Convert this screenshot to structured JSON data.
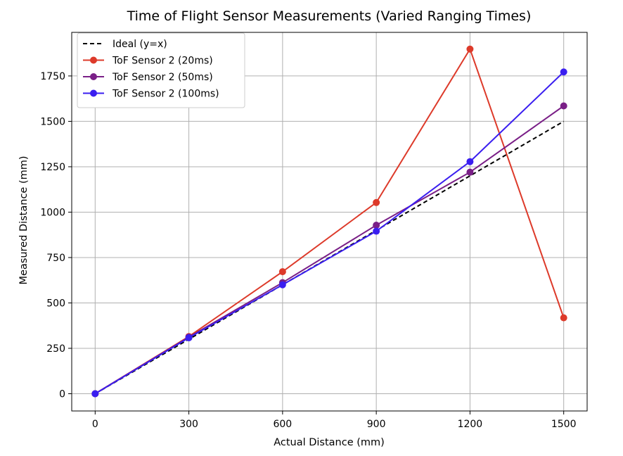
{
  "chart_data": {
    "type": "line",
    "title": "Time of Flight Sensor Measurements (Varied Ranging Times)",
    "xlabel": "Actual Distance (mm)",
    "ylabel": "Measured Distance (mm)",
    "xlim": [
      -75,
      1575
    ],
    "ylim": [
      -95,
      1990
    ],
    "x_ticks": [
      0,
      300,
      600,
      900,
      1200,
      1500
    ],
    "x_tick_labels": [
      "0",
      "300",
      "600",
      "900",
      "1200",
      "1500"
    ],
    "y_ticks": [
      0,
      250,
      500,
      750,
      1000,
      1250,
      1500,
      1750
    ],
    "y_tick_labels": [
      "0",
      "250",
      "500",
      "750",
      "1000",
      "1250",
      "1500",
      "1750"
    ],
    "grid": true,
    "legend_position": "top-left",
    "x": [
      0,
      300,
      600,
      900,
      1200,
      1500
    ],
    "series": [
      {
        "name": "Ideal (y=x)",
        "values": [
          0,
          300,
          600,
          900,
          1200,
          1500
        ],
        "color": "#000000",
        "style": "dashed",
        "marker": "none"
      },
      {
        "name": "ToF Sensor 2 (20ms)",
        "values": [
          0,
          315,
          672,
          1053,
          1898,
          418
        ],
        "color": "#dd3a2a",
        "style": "solid",
        "marker": "circle"
      },
      {
        "name": "ToF Sensor 2 (50ms)",
        "values": [
          0,
          312,
          612,
          928,
          1220,
          1585
        ],
        "color": "#7a1f87",
        "style": "solid",
        "marker": "circle"
      },
      {
        "name": "ToF Sensor 2 (100ms)",
        "values": [
          0,
          308,
          600,
          895,
          1278,
          1772
        ],
        "color": "#3a1ef0",
        "style": "solid",
        "marker": "circle"
      }
    ]
  }
}
